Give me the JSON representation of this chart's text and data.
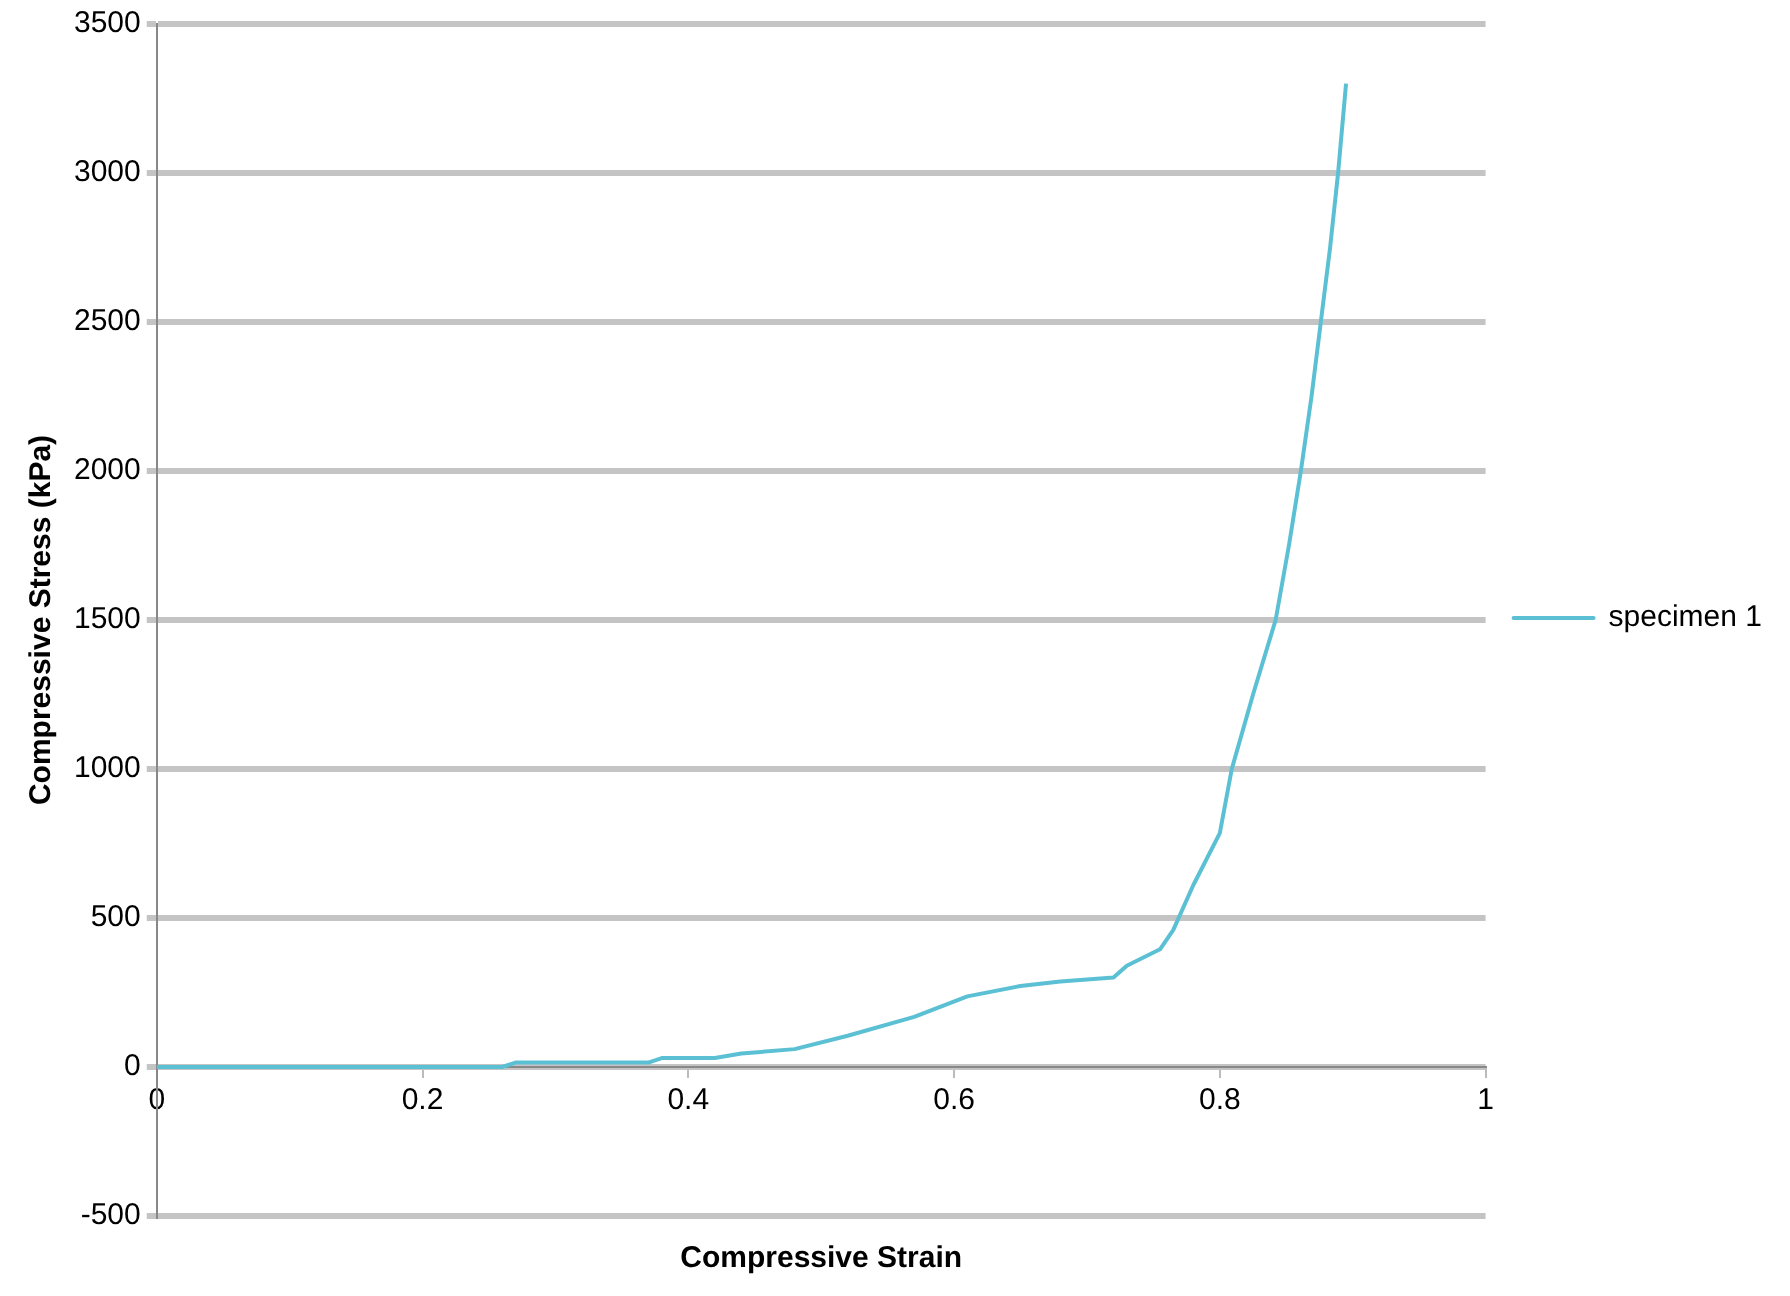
{
  "chart_data": {
    "type": "line",
    "xlabel": "Compressive Strain",
    "ylabel": "Compressive Stress (kPa)",
    "xlim": [
      0,
      1
    ],
    "xticks": [
      0,
      0.2,
      0.4,
      0.6,
      0.8,
      1
    ],
    "ylim": [
      -500,
      3500
    ],
    "yticks": [
      -500,
      0,
      500,
      1000,
      1500,
      2000,
      2500,
      3000,
      3500
    ],
    "grid": "y",
    "legend": "right",
    "marker": "none",
    "line_style": "solid",
    "series": [
      {
        "name": "specimen 1",
        "color": "#5bc0d4",
        "x": [
          0,
          0.1,
          0.2,
          0.26,
          0.27,
          0.37,
          0.38,
          0.42,
          0.44,
          0.48,
          0.52,
          0.57,
          0.61,
          0.65,
          0.68,
          0.72,
          0.73,
          0.755,
          0.765,
          0.78,
          0.8,
          0.809,
          0.825,
          0.842,
          0.852,
          0.861,
          0.869,
          0.876,
          0.883,
          0.889,
          0.892,
          0.895
        ],
        "values": [
          0,
          0,
          0,
          0,
          15,
          15,
          30,
          30,
          45,
          60,
          105,
          168,
          237,
          272,
          287,
          300,
          340,
          395,
          460,
          610,
          785,
          1000,
          1250,
          1500,
          1750,
          2000,
          2250,
          2500,
          2750,
          3000,
          3150,
          3300
        ]
      }
    ]
  }
}
